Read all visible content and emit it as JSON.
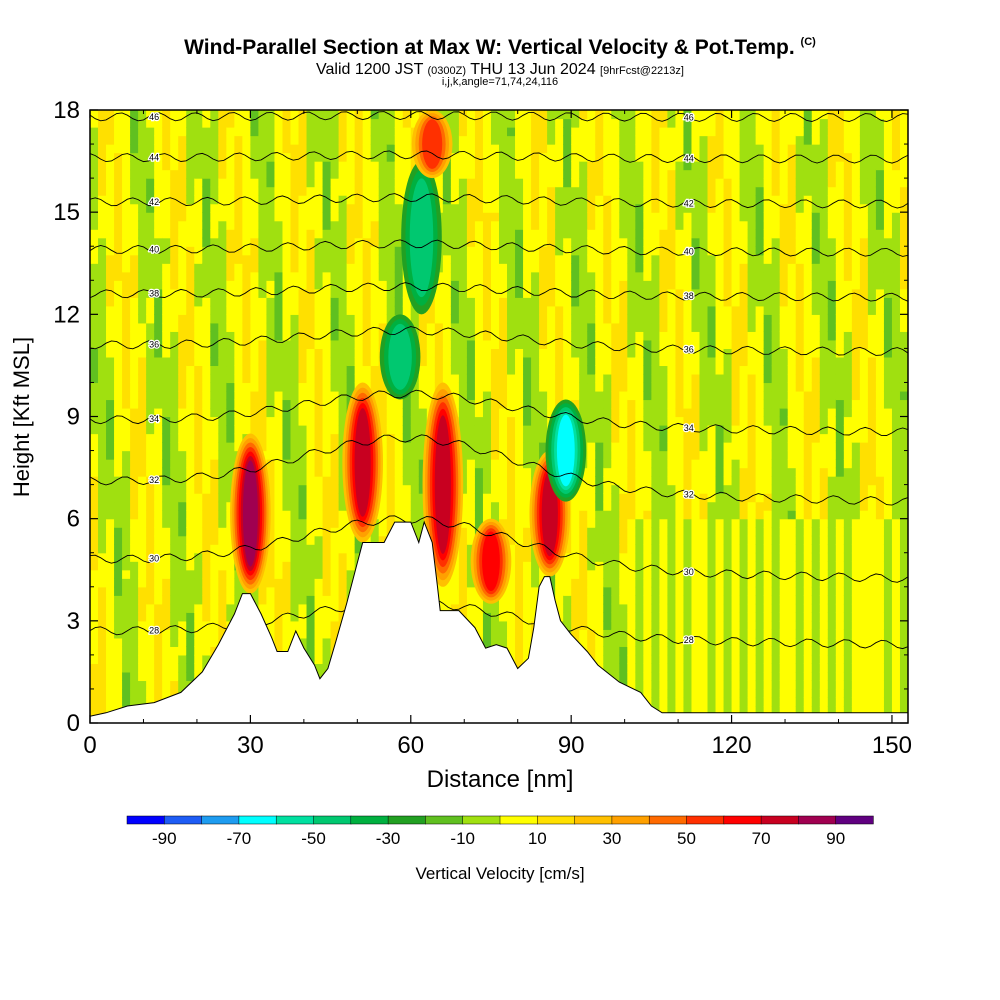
{
  "header": {
    "title": "Wind-Parallel Section at Max W: Vertical Velocity & Pot.Temp.",
    "title_mark": "(C)",
    "subtitle_a": "Valid 1200 JST",
    "subtitle_b": "(0300Z)",
    "subtitle_c": "THU 13 Jun 2024",
    "subtitle_d": "[9hrFcst@2213z]",
    "params": "i,j,k,angle=71,74,24,116"
  },
  "chart_data": {
    "type": "heatmap",
    "xlabel": "Distance [nm]",
    "ylabel": "Height [Kft MSL]",
    "xlim": [
      0,
      153
    ],
    "ylim": [
      0,
      18
    ],
    "x_ticks": [
      0,
      30,
      60,
      90,
      120,
      150
    ],
    "y_ticks": [
      0,
      3,
      6,
      9,
      12,
      15,
      18
    ],
    "colorbar": {
      "label": "Vertical Velocity [cm/s]",
      "tick_labels": [
        -90,
        -70,
        -50,
        -30,
        -10,
        10,
        30,
        50,
        70,
        90
      ],
      "bins": [
        -100,
        -90,
        -80,
        -70,
        -60,
        -50,
        -40,
        -30,
        -20,
        -10,
        0,
        10,
        20,
        30,
        40,
        50,
        60,
        70,
        80,
        90,
        100
      ],
      "colors": [
        "#0000ff",
        "#1e5cf5",
        "#1e9cf0",
        "#00ffff",
        "#00e0a0",
        "#00c870",
        "#00b040",
        "#22a022",
        "#60c020",
        "#a0e010",
        "#ffff00",
        "#ffe000",
        "#ffc000",
        "#ffa000",
        "#ff6a00",
        "#ff3000",
        "#ff0000",
        "#c80020",
        "#a00050",
        "#600080"
      ]
    },
    "terrain": [
      [
        0,
        0.2
      ],
      [
        3,
        0.3
      ],
      [
        7,
        0.5
      ],
      [
        12,
        0.6
      ],
      [
        17,
        0.9
      ],
      [
        21,
        1.5
      ],
      [
        24,
        2.3
      ],
      [
        27,
        3.2
      ],
      [
        28.5,
        3.8
      ],
      [
        30,
        3.8
      ],
      [
        32,
        3.2
      ],
      [
        34,
        2.5
      ],
      [
        35,
        2.1
      ],
      [
        37,
        2.1
      ],
      [
        38.5,
        2.7
      ],
      [
        40,
        2.2
      ],
      [
        42,
        1.7
      ],
      [
        43,
        1.3
      ],
      [
        44.5,
        1.6
      ],
      [
        46,
        2.4
      ],
      [
        48,
        3.5
      ],
      [
        50,
        4.7
      ],
      [
        51,
        5.3
      ],
      [
        55,
        5.3
      ],
      [
        57,
        5.9
      ],
      [
        60,
        5.9
      ],
      [
        61.5,
        5.3
      ],
      [
        62.5,
        5.9
      ],
      [
        64,
        5.3
      ],
      [
        65,
        4.0
      ],
      [
        65.5,
        3.3
      ],
      [
        69,
        3.3
      ],
      [
        72,
        2.8
      ],
      [
        74,
        2.2
      ],
      [
        76,
        2.3
      ],
      [
        78,
        2.2
      ],
      [
        80,
        1.6
      ],
      [
        82,
        1.9
      ],
      [
        83,
        2.8
      ],
      [
        84,
        4.0
      ],
      [
        85,
        4.3
      ],
      [
        86,
        4.3
      ],
      [
        87,
        3.6
      ],
      [
        88,
        3.0
      ],
      [
        90,
        2.6
      ],
      [
        93,
        2.1
      ],
      [
        95,
        1.7
      ],
      [
        99,
        1.2
      ],
      [
        103,
        0.9
      ],
      [
        105,
        0.5
      ],
      [
        107,
        0.3
      ],
      [
        153,
        0.3
      ]
    ],
    "isentropes": [
      {
        "label": "28",
        "z": 2.7,
        "slope": 1.0
      },
      {
        "label": "30",
        "z": 4.8,
        "slope": 1.4
      },
      {
        "label": "32",
        "z": 7.1,
        "slope": 1.5
      },
      {
        "label": "34",
        "z": 8.9,
        "slope": 0.9
      },
      {
        "label": "36",
        "z": 11.1,
        "slope": 0.5
      },
      {
        "label": "38",
        "z": 12.6,
        "slope": 0.25
      },
      {
        "label": "40",
        "z": 13.9,
        "slope": 0.2
      },
      {
        "label": "42",
        "z": 15.3,
        "slope": 0.15
      },
      {
        "label": "44",
        "z": 16.6,
        "slope": 0.1
      },
      {
        "label": "46",
        "z": 17.8,
        "slope": 0.05
      }
    ],
    "features": [
      {
        "x": 30,
        "zmin": 3.8,
        "zmax": 8.5,
        "w": 85
      },
      {
        "x": 51,
        "zmin": 5.3,
        "zmax": 10.0,
        "w": 75
      },
      {
        "x": 58,
        "zmin": 9.5,
        "zmax": 12.0,
        "w": -40
      },
      {
        "x": 62,
        "zmin": 12.0,
        "zmax": 16.5,
        "w": -40
      },
      {
        "x": 66,
        "zmin": 4.0,
        "zmax": 10.0,
        "w": 75
      },
      {
        "x": 75,
        "zmin": 3.5,
        "zmax": 6.0,
        "w": 65
      },
      {
        "x": 86,
        "zmin": 4.3,
        "zmax": 8.0,
        "w": 70
      },
      {
        "x": 89,
        "zmin": 6.5,
        "zmax": 9.5,
        "w": -60
      },
      {
        "x": 64,
        "zmin": 16.0,
        "zmax": 18.0,
        "w": 50
      }
    ]
  }
}
